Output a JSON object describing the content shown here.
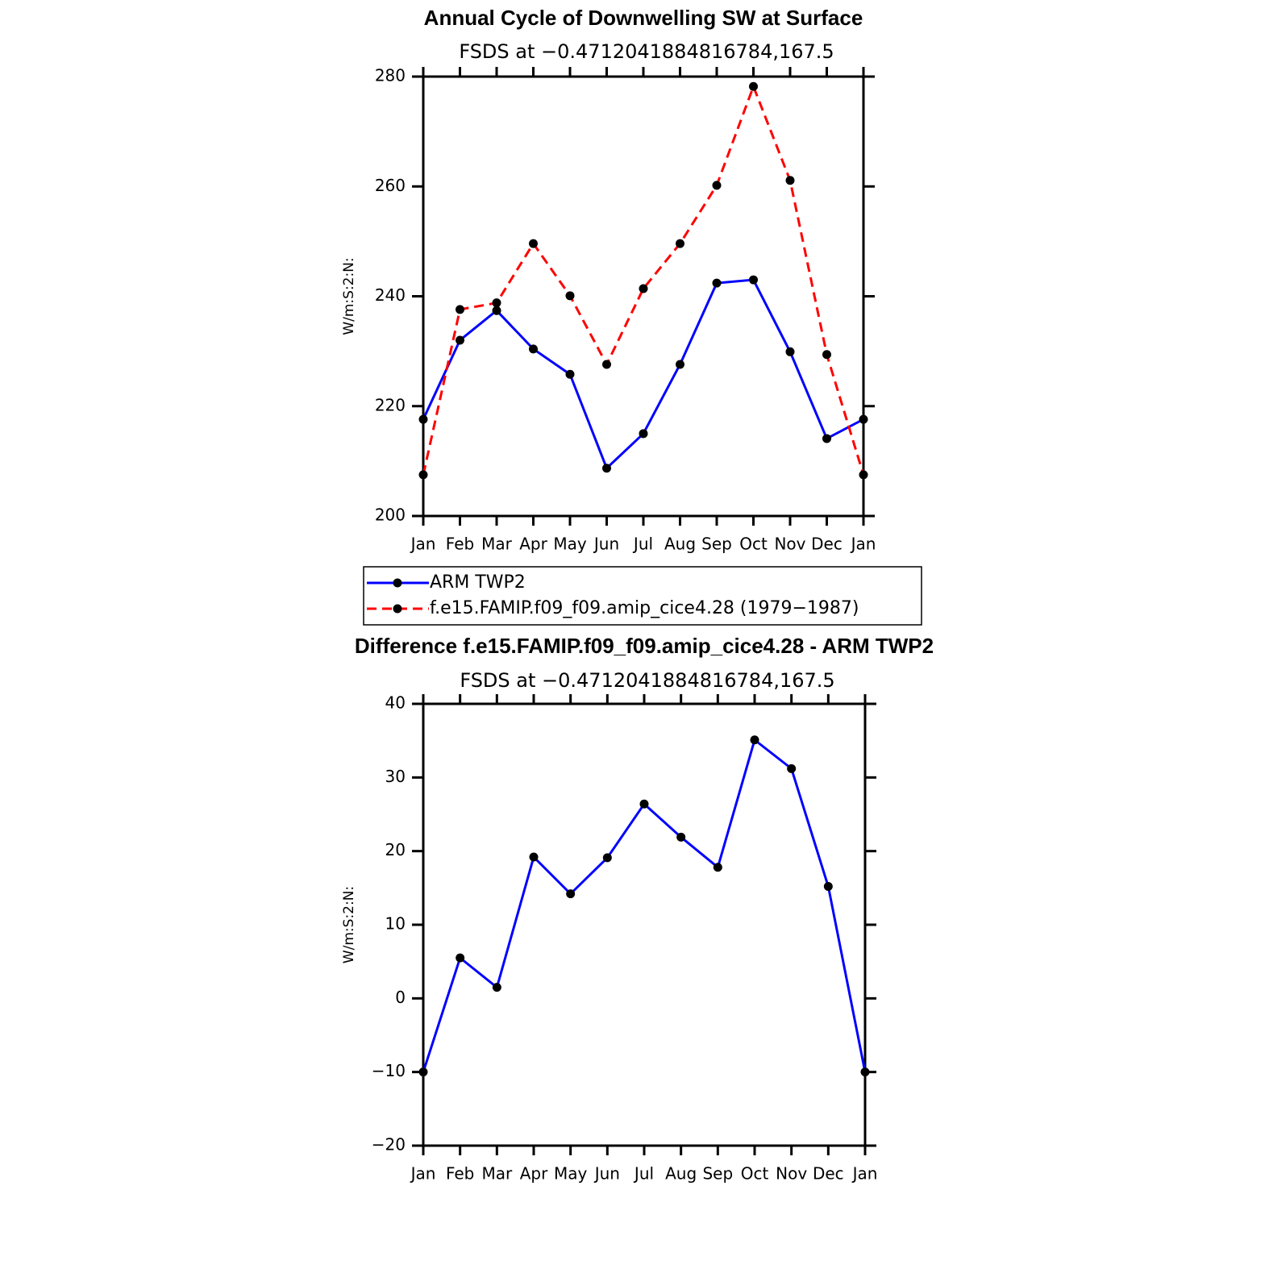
{
  "chart_data": [
    {
      "type": "line",
      "title": "Annual Cycle of Downwelling SW at Surface",
      "subtitle": "FSDS at −0.4712041884816784,167.5",
      "y_label": "W/m:S:2:N:",
      "categories": [
        "Jan",
        "Feb",
        "Mar",
        "Apr",
        "May",
        "Jun",
        "Jul",
        "Aug",
        "Sep",
        "Oct",
        "Nov",
        "Dec",
        "Jan"
      ],
      "series": [
        {
          "name": "ARM TWP2",
          "color": "#0000ff",
          "line_style": "solid",
          "values": [
            217.6,
            232.0,
            237.4,
            230.4,
            225.8,
            208.7,
            215.0,
            227.6,
            242.4,
            243.0,
            229.9,
            214.1,
            217.6
          ]
        },
        {
          "name": "f.e15.FAMIP.f09_f09.amip_cice4.28 (1979−1987)",
          "color": "#ff0000",
          "line_style": "dashed",
          "values": [
            207.5,
            237.6,
            238.8,
            249.6,
            240.1,
            227.6,
            241.4,
            249.6,
            260.2,
            278.2,
            261.1,
            229.4,
            207.5
          ]
        }
      ],
      "ylim": [
        200,
        280
      ],
      "yticks": [
        200,
        220,
        240,
        260,
        280
      ],
      "legend": "below"
    },
    {
      "type": "line",
      "title": "Difference f.e15.FAMIP.f09_f09.amip_cice4.28 - ARM TWP2",
      "subtitle": "FSDS at −0.4712041884816784,167.5",
      "y_label": "W/m:S:2:N:",
      "categories": [
        "Jan",
        "Feb",
        "Mar",
        "Apr",
        "May",
        "Jun",
        "Jul",
        "Aug",
        "Sep",
        "Oct",
        "Nov",
        "Dec",
        "Jan"
      ],
      "series": [
        {
          "color": "#0000ff",
          "line_style": "solid",
          "values": [
            -10.0,
            5.5,
            1.5,
            19.2,
            14.2,
            19.1,
            26.4,
            21.9,
            17.8,
            35.1,
            31.2,
            15.2,
            -10.0
          ]
        }
      ],
      "ylim": [
        -20,
        40
      ],
      "yticks": [
        {
          "value": -20,
          "label": "−20"
        },
        {
          "value": -10,
          "label": "−10"
        },
        0,
        10,
        20,
        30,
        40
      ]
    }
  ]
}
